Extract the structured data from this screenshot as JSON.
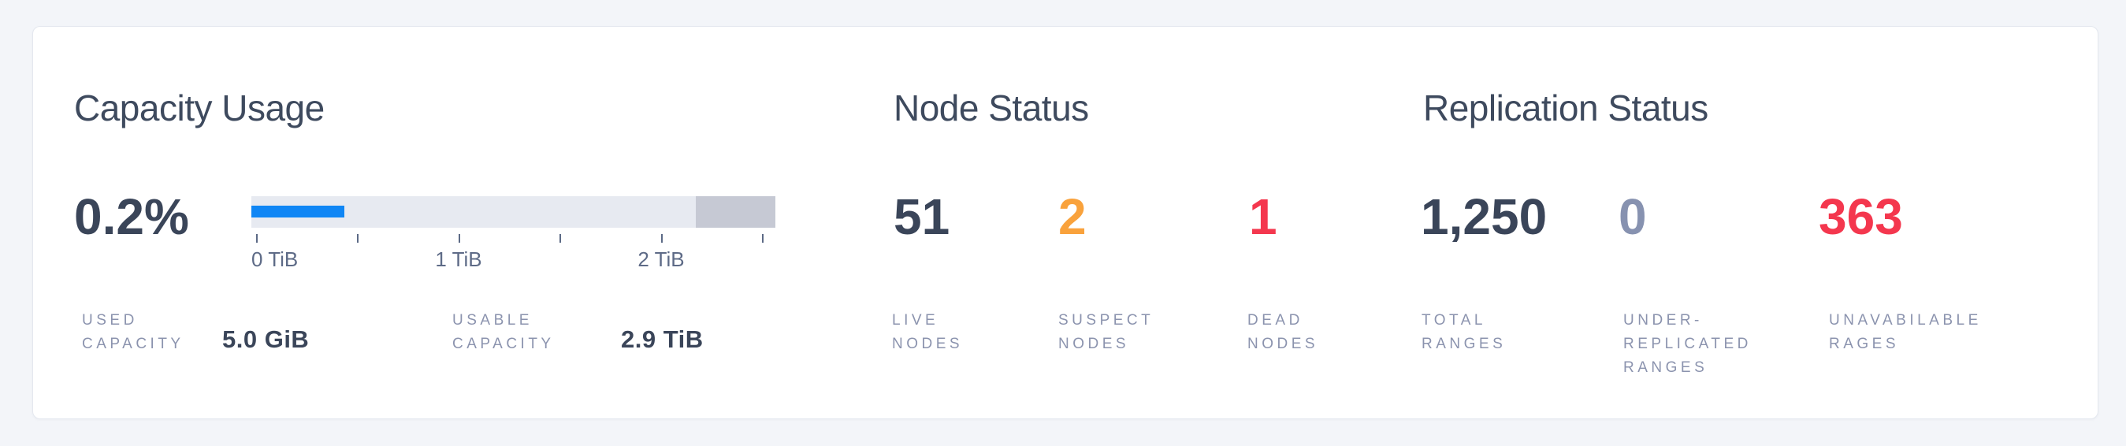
{
  "card": {
    "background": "#FFFFFF",
    "page_background": "#F3F5F9"
  },
  "capacity": {
    "title": "Capacity Usage",
    "percent": "0.2%",
    "axis_labels": [
      "0 TiB",
      "1 TiB",
      "2 TiB"
    ],
    "stats": [
      {
        "label": "USED\nCAPACITY",
        "value": "5.0 GiB"
      },
      {
        "label": "USABLE\nCAPACITY",
        "value": "2.9 TiB"
      }
    ]
  },
  "nodes": {
    "title": "Node Status",
    "stats": [
      {
        "value": "51",
        "label": "LIVE\nNODES",
        "color": "#3A4559"
      },
      {
        "value": "2",
        "label": "SUSPECT\nNODES",
        "color": "#F9A23C"
      },
      {
        "value": "1",
        "label": "DEAD\nNODES",
        "color": "#F4374E"
      }
    ]
  },
  "replication": {
    "title": "Replication Status",
    "stats": [
      {
        "value": "1,250",
        "label": "TOTAL\nRANGES",
        "color": "#3A4559"
      },
      {
        "value": "0",
        "label": "UNDER-\nREPLICATED\nRANGES",
        "color": "#8792B0"
      },
      {
        "value": "363",
        "label": "UNAVABILABLE\nRAGES",
        "color": "#F4374E"
      }
    ]
  },
  "chart_data": {
    "type": "bar",
    "title": "Capacity Usage",
    "usage_percent": 0.2,
    "used_capacity": "5.0 GiB",
    "usable_capacity": "2.9 TiB",
    "x_unit": "TiB",
    "tick_values_tib": [
      0,
      0.5,
      1,
      1.5,
      2,
      2.5
    ],
    "tick_labels_shown": [
      "0 TiB",
      "1 TiB",
      "2 TiB"
    ],
    "legend": "none",
    "segments": [
      {
        "name": "used",
        "color": "#0F86F5",
        "fraction_of_bar": 0.177
      },
      {
        "name": "available",
        "color": "#E7EAF1",
        "fraction_of_bar": 0.671
      },
      {
        "name": "non-usable",
        "color": "#C6C9D4",
        "fraction_of_bar": 0.152
      }
    ],
    "render": {
      "used_width": "17.7%",
      "reserved_width": "15.2%"
    }
  }
}
